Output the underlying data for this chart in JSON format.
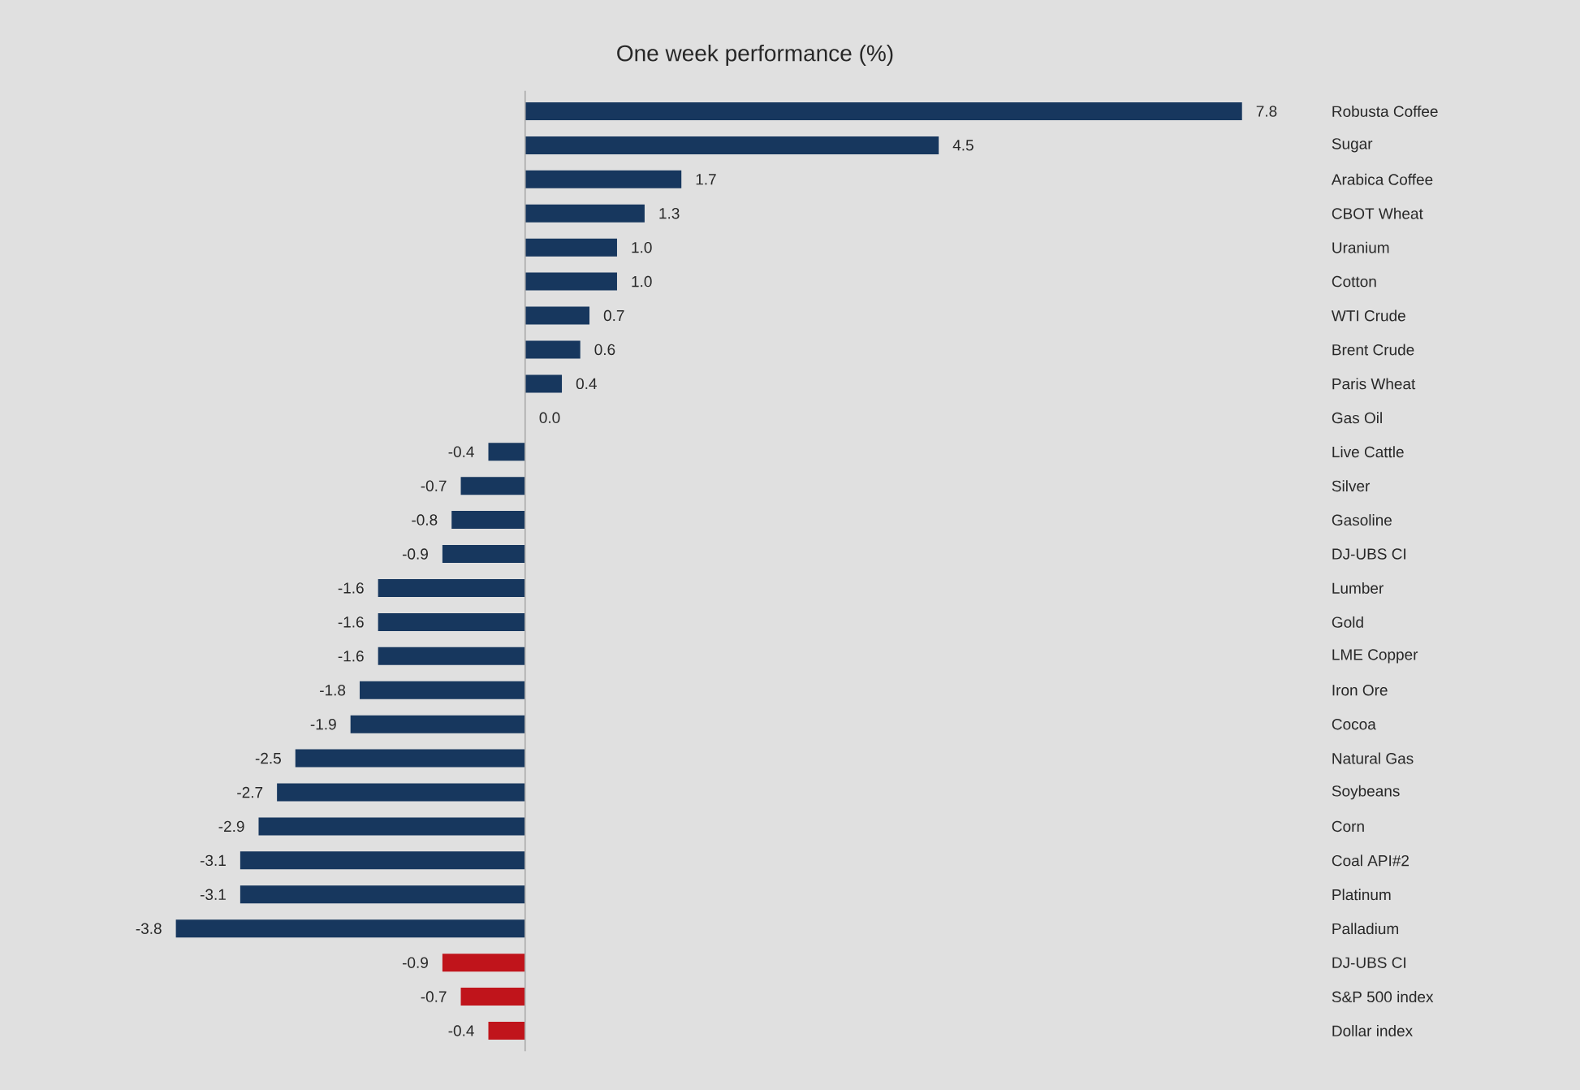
{
  "chart_data": {
    "type": "bar",
    "orientation": "horizontal",
    "title": "One week performance (%)",
    "categories": [
      "Robusta Coffee",
      "Sugar",
      "Arabica Coffee",
      "CBOT Wheat",
      "Uranium",
      "Cotton",
      "WTI Crude",
      "Brent Crude",
      "Paris Wheat",
      "Gas Oil",
      "Live Cattle",
      "Silver",
      "Gasoline",
      "DJ-UBS CI",
      "Lumber",
      "Gold",
      "LME Copper",
      "Iron Ore",
      "Cocoa",
      "Natural Gas",
      "Soybeans",
      "Corn",
      "Coal API#2",
      "Platinum",
      "Palladium",
      "DJ-UBS CI",
      "S&P 500 index",
      "Dollar index"
    ],
    "values": [
      7.8,
      4.5,
      1.7,
      1.3,
      1.0,
      1.0,
      0.7,
      0.6,
      0.4,
      0.0,
      -0.4,
      -0.7,
      -0.8,
      -0.9,
      -1.6,
      -1.6,
      -1.6,
      -1.8,
      -1.9,
      -2.5,
      -2.7,
      -2.9,
      -3.1,
      -3.1,
      -3.8,
      -0.9,
      -0.7,
      -0.4
    ],
    "value_labels": [
      "7.8",
      "4.5",
      "1.7",
      "1.3",
      "1.0",
      "1.0",
      "0.7",
      "0.6",
      "0.4",
      "0.0",
      "-0.4",
      "-0.7",
      "-0.8",
      "-0.9",
      "-1.6",
      "-1.6",
      "-1.6",
      "-1.8",
      "-1.9",
      "-2.5",
      "-2.7",
      "-2.9",
      "-3.1",
      "-3.1",
      "-3.8",
      "-0.9",
      "-0.7",
      "-0.4"
    ],
    "colors": [
      "#17375e",
      "#17375e",
      "#17375e",
      "#17375e",
      "#17375e",
      "#17375e",
      "#17375e",
      "#17375e",
      "#17375e",
      "#17375e",
      "#17375e",
      "#17375e",
      "#17375e",
      "#17375e",
      "#17375e",
      "#17375e",
      "#17375e",
      "#17375e",
      "#17375e",
      "#17375e",
      "#17375e",
      "#17375e",
      "#17375e",
      "#17375e",
      "#17375e",
      "#c0141b",
      "#c0141b",
      "#c0141b"
    ]
  }
}
